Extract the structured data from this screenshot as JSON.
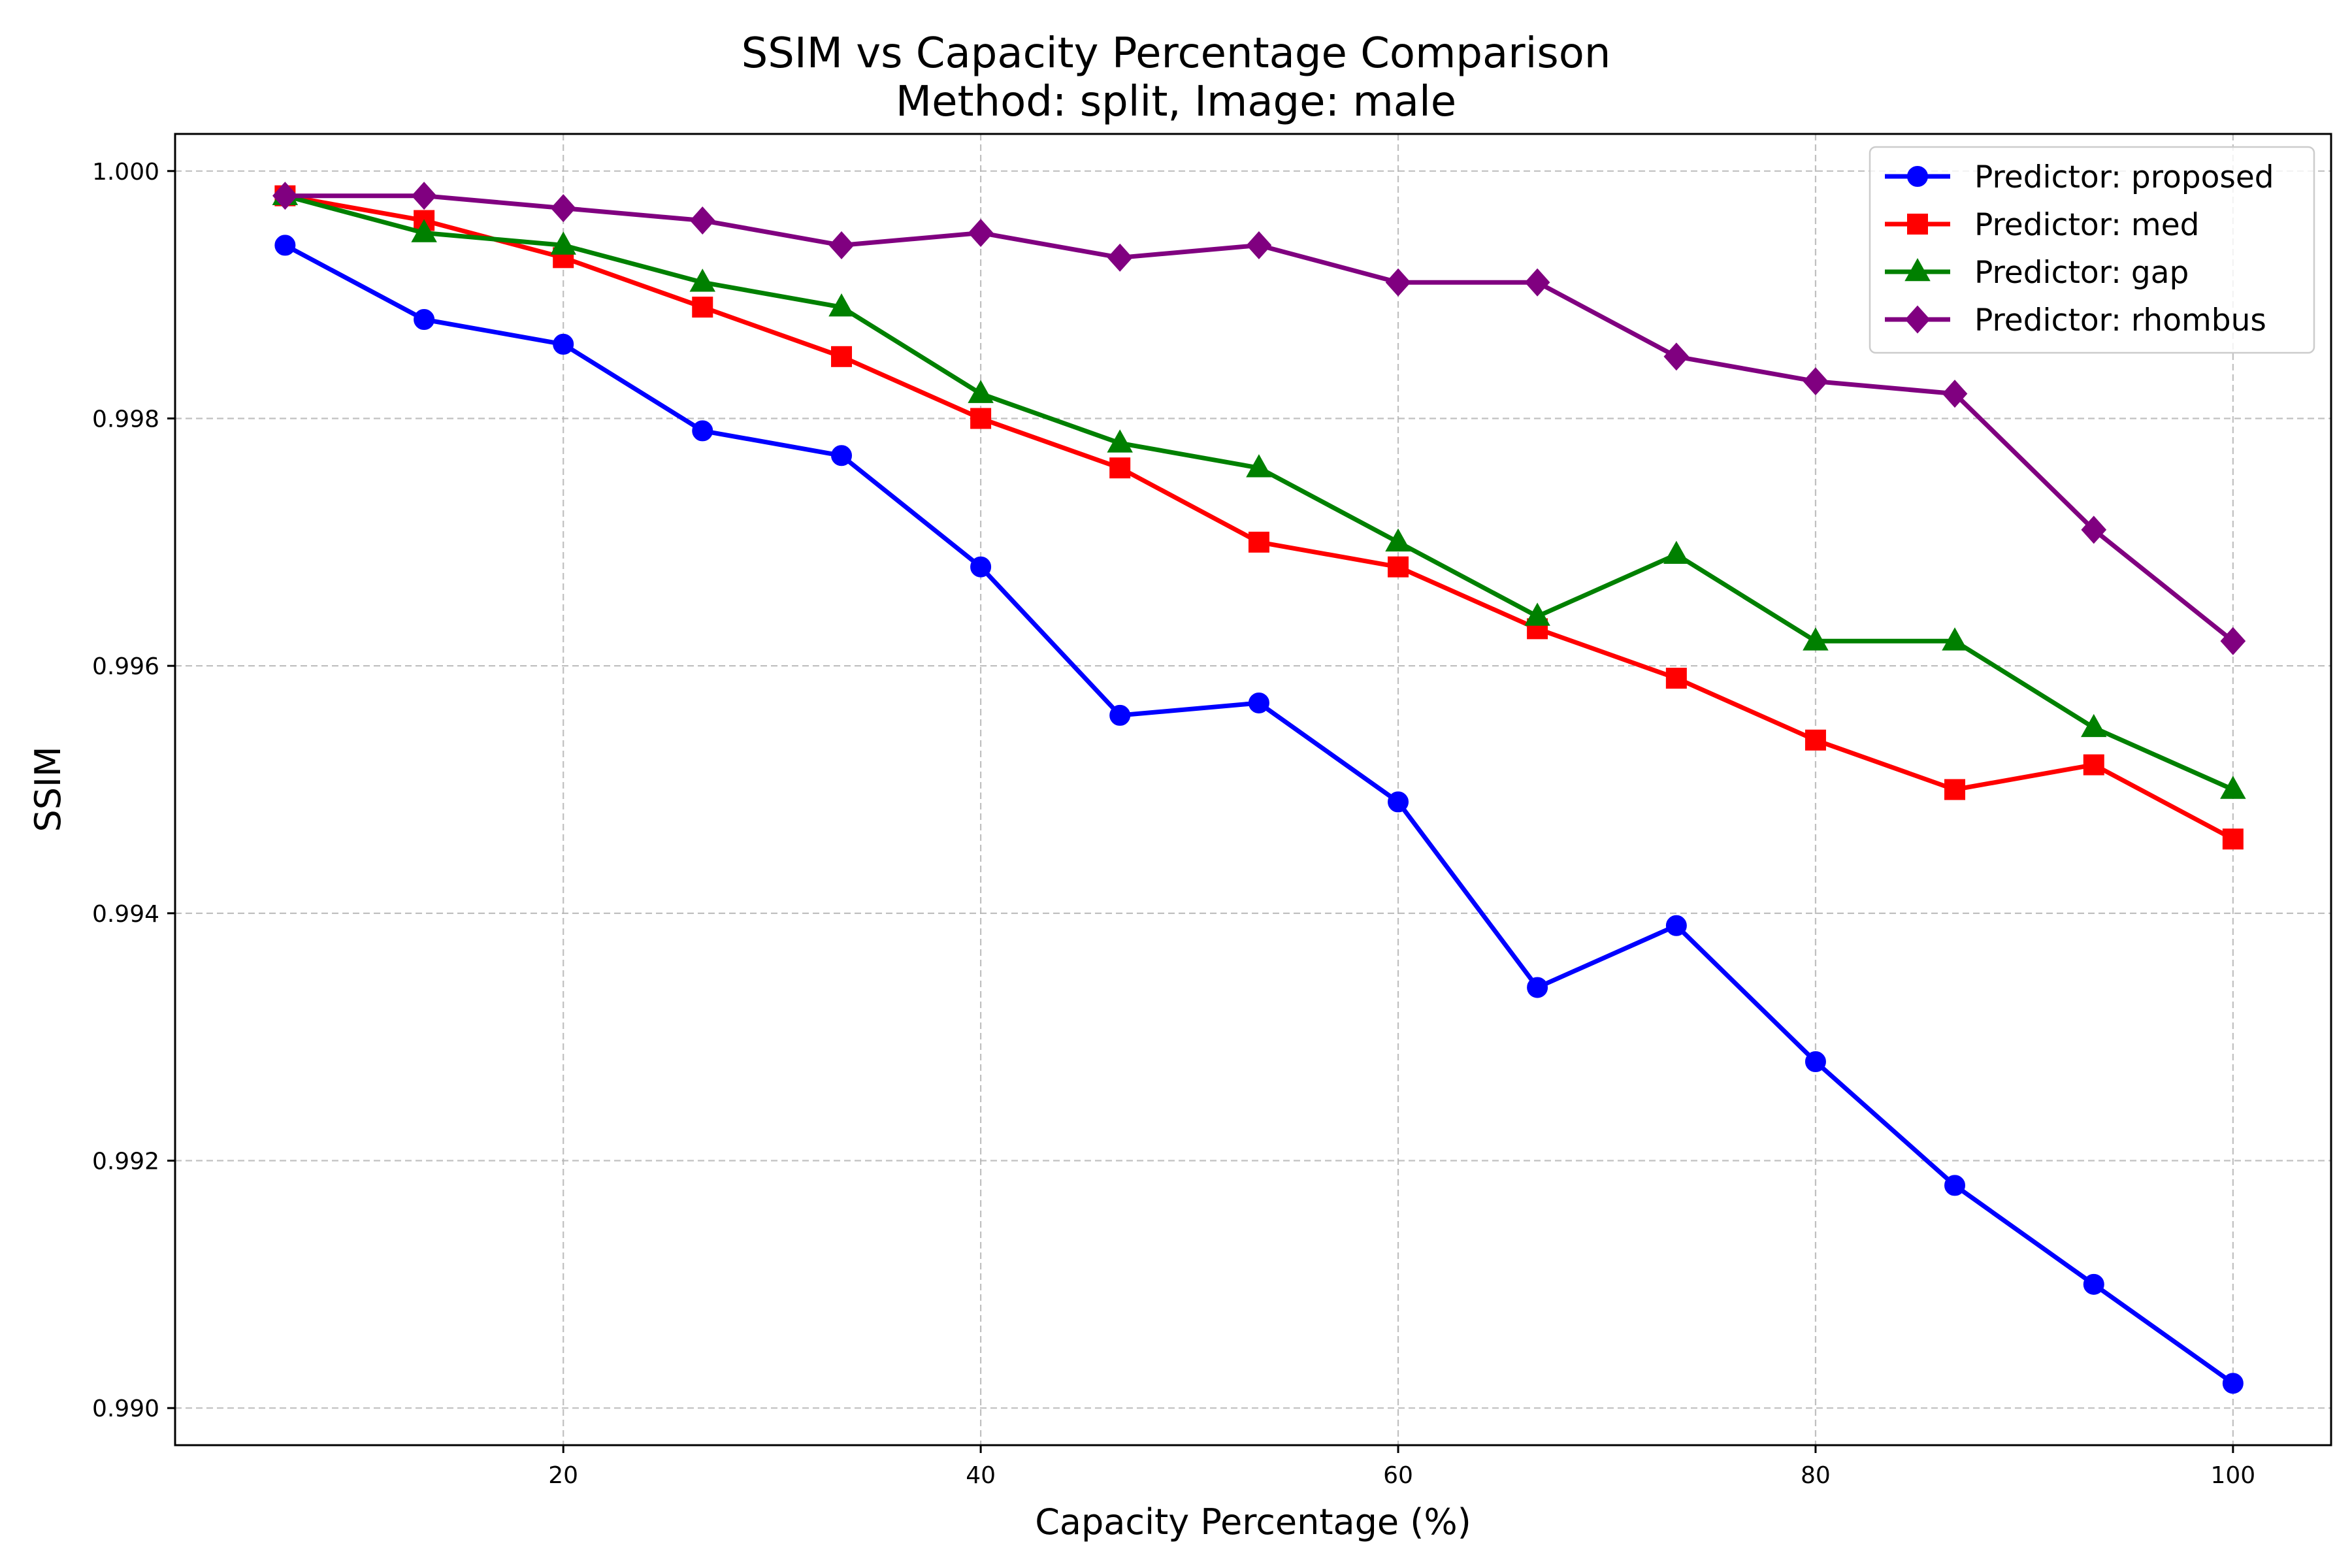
{
  "chart_data": {
    "type": "line",
    "title": "SSIM vs Capacity Percentage Comparison",
    "subtitle": "Method: split, Image: male",
    "xlabel": "Capacity Percentage (%)",
    "ylabel": "SSIM",
    "xlim": [
      1.4,
      104.7
    ],
    "ylim": [
      0.9897,
      1.0003
    ],
    "xticks": [
      20,
      40,
      60,
      80,
      100
    ],
    "xtick_labels": [
      "20",
      "40",
      "60",
      "80",
      "100"
    ],
    "yticks": [
      0.99,
      0.992,
      0.994,
      0.996,
      0.998,
      1.0
    ],
    "ytick_labels": [
      "0.990",
      "0.992",
      "0.994",
      "0.996",
      "0.998",
      "1.000"
    ],
    "grid": true,
    "legend_position": "top-right",
    "x": [
      6.67,
      13.33,
      20.0,
      26.67,
      33.33,
      40.0,
      46.67,
      53.33,
      60.0,
      66.67,
      73.33,
      80.0,
      86.67,
      93.33,
      100.0
    ],
    "series": [
      {
        "name": "Predictor: proposed",
        "color": "#0000ff",
        "marker": "circle",
        "values": [
          0.9994,
          0.9988,
          0.9986,
          0.9979,
          0.9977,
          0.9968,
          0.9956,
          0.9957,
          0.9949,
          0.9934,
          0.9939,
          0.9928,
          0.9918,
          0.991,
          0.9902
        ]
      },
      {
        "name": "Predictor: med",
        "color": "#ff0000",
        "marker": "square",
        "values": [
          0.9998,
          0.9996,
          0.9993,
          0.9989,
          0.9985,
          0.998,
          0.9976,
          0.997,
          0.9968,
          0.9963,
          0.9959,
          0.9954,
          0.995,
          0.9952,
          0.9946
        ]
      },
      {
        "name": "Predictor: gap",
        "color": "#008000",
        "marker": "triangle",
        "values": [
          0.9998,
          0.9995,
          0.9994,
          0.9991,
          0.9989,
          0.9982,
          0.9978,
          0.9976,
          0.997,
          0.9964,
          0.9969,
          0.9962,
          0.9962,
          0.9955,
          0.995
        ]
      },
      {
        "name": "Predictor: rhombus",
        "color": "#800080",
        "marker": "diamond",
        "values": [
          0.9998,
          0.9998,
          0.9997,
          0.9996,
          0.9994,
          0.9995,
          0.9993,
          0.9994,
          0.9991,
          0.9991,
          0.9985,
          0.9983,
          0.9982,
          0.9971,
          0.9962
        ]
      }
    ]
  }
}
